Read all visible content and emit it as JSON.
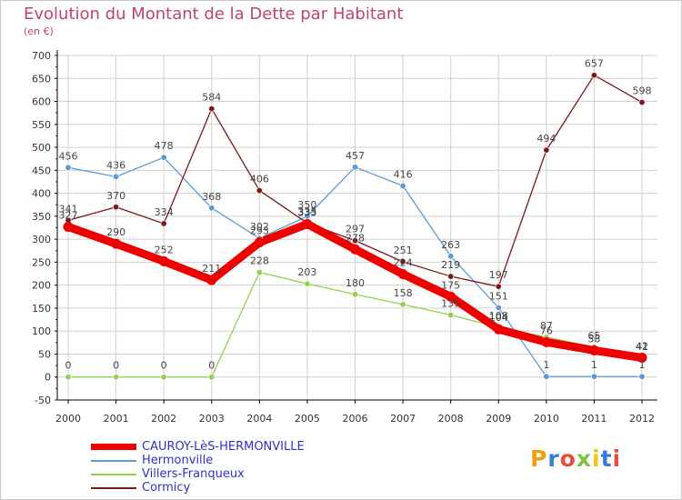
{
  "title": "Evolution du Montant de la Dette par Habitant",
  "subtitle": "(en €)",
  "logo_text": "Proxiti",
  "colors": {
    "title": "#c0427a",
    "legend_text": "#3030c8",
    "grid": "#d0d0d0",
    "axis": "#000000"
  },
  "chart_data": {
    "type": "line",
    "x": [
      "2000",
      "2001",
      "2002",
      "2003",
      "2004",
      "2005",
      "2006",
      "2007",
      "2008",
      "2009",
      "2010",
      "2011",
      "2012"
    ],
    "ylim": [
      -50,
      700
    ],
    "yticks": [
      -50,
      0,
      50,
      100,
      150,
      200,
      250,
      300,
      350,
      400,
      450,
      500,
      550,
      600,
      650,
      700
    ],
    "grid": true,
    "legend_position": "bottom-left",
    "series": [
      {
        "name": "Hermonville",
        "color": "#5b9bd5",
        "values": [
          456,
          436,
          478,
          368,
          302,
          350,
          457,
          416,
          263,
          151,
          1,
          1,
          1
        ]
      },
      {
        "name": "Villers-Franqueux",
        "color": "#92d050",
        "values": [
          0,
          0,
          0,
          0,
          228,
          203,
          180,
          158,
          135,
          108,
          87,
          65,
          41
        ]
      },
      {
        "name": "Cormicy",
        "color": "#7b1a1a",
        "values": [
          341,
          370,
          334,
          584,
          406,
          335,
          297,
          251,
          219,
          197,
          494,
          657,
          598
        ]
      },
      {
        "name": "CAUROY-LèS-HERMONVILLE",
        "color": "#ee0000",
        "values": [
          327,
          290,
          252,
          211,
          293,
          333,
          278,
          224,
          175,
          104,
          76,
          58,
          42
        ]
      }
    ]
  }
}
